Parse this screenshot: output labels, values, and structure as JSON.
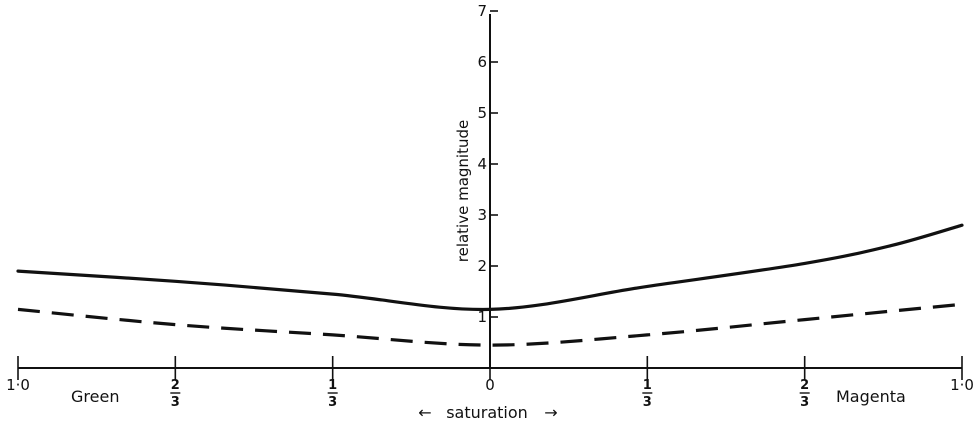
{
  "chart_data": {
    "type": "line",
    "ylabel": "relative magnitude",
    "xlabel": "saturation",
    "xlabel_left_arrow": "←",
    "xlabel_right_arrow": "→",
    "xlim": [
      -1,
      1
    ],
    "ylim": [
      0,
      7
    ],
    "y_ticks": [
      "1",
      "2",
      "3",
      "4",
      "5",
      "6",
      "7"
    ],
    "x_ticks": [
      {
        "value": -1,
        "label": "1·0"
      },
      {
        "value": -0.6667,
        "num": "2",
        "den": "3"
      },
      {
        "value": -0.3333,
        "num": "1",
        "den": "3"
      },
      {
        "value": 0,
        "label": "0"
      },
      {
        "value": 0.3333,
        "num": "1",
        "den": "3"
      },
      {
        "value": 0.6667,
        "num": "2",
        "den": "3"
      },
      {
        "value": 1,
        "label": "1·0"
      }
    ],
    "side_labels": {
      "left": "Green",
      "right": "Magenta"
    },
    "series": [
      {
        "style": "solid",
        "x": [
          -1,
          -0.6667,
          -0.3333,
          0,
          0.3333,
          0.6667,
          0.85,
          1
        ],
        "y": [
          1.9,
          1.7,
          1.45,
          1.15,
          1.6,
          2.05,
          2.4,
          2.8
        ]
      },
      {
        "style": "dashed",
        "x": [
          -1,
          -0.6667,
          -0.3333,
          0,
          0.3333,
          0.6667,
          1
        ],
        "y": [
          1.15,
          0.85,
          0.65,
          0.45,
          0.65,
          0.95,
          1.25
        ]
      }
    ]
  }
}
